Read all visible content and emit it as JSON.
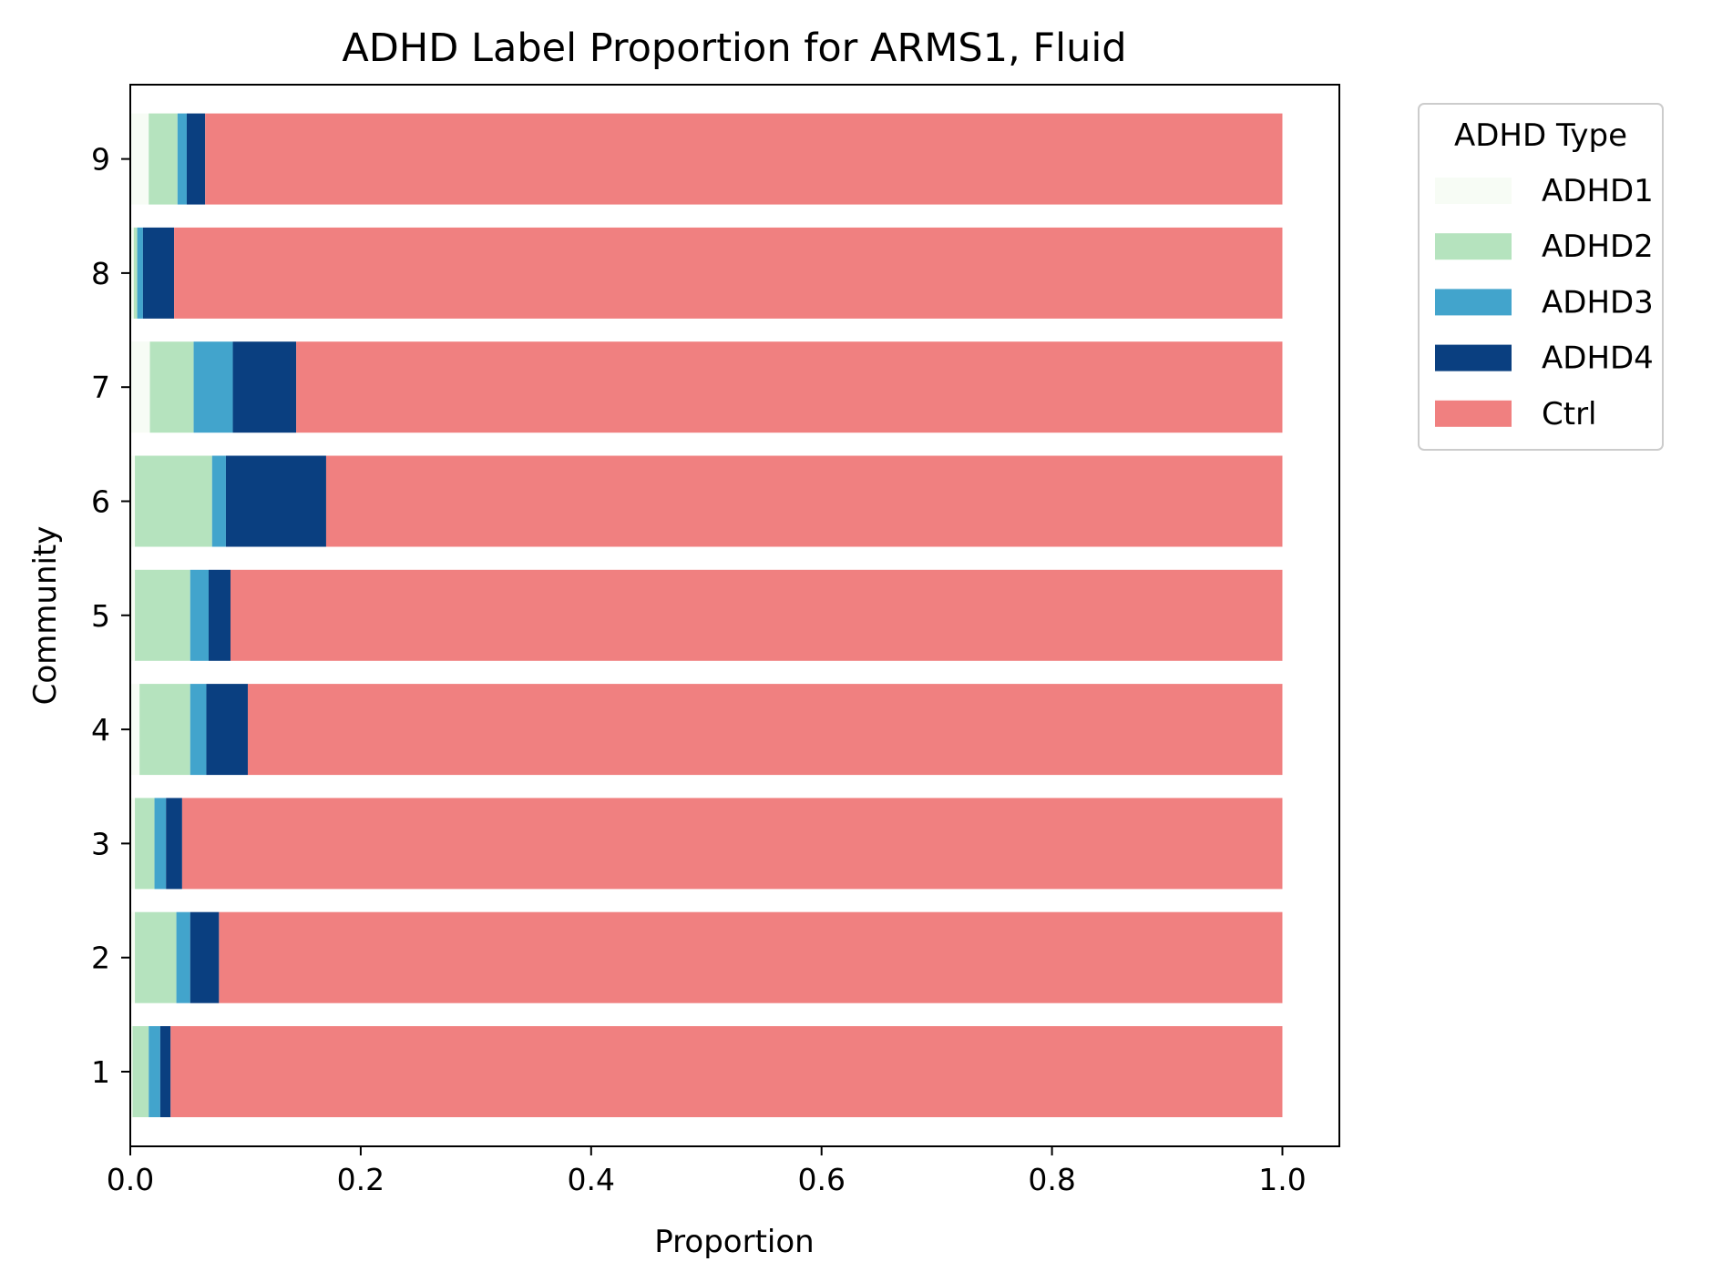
{
  "chart_data": {
    "type": "bar",
    "orientation": "horizontal",
    "stacked": true,
    "title": "ADHD Label Proportion for ARMS1, Fluid",
    "xlabel": "Proportion",
    "ylabel": "Community",
    "xlim": [
      0,
      1.05
    ],
    "xticks": [
      "0.0",
      "0.2",
      "0.4",
      "0.6",
      "0.8",
      "1.0"
    ],
    "categories": [
      "1",
      "2",
      "3",
      "4",
      "5",
      "6",
      "7",
      "8",
      "9"
    ],
    "grid": false,
    "legend": {
      "title": "ADHD Type",
      "placement": "outside-top-right"
    },
    "series": [
      {
        "name": "ADHD1",
        "color": "#f7fcf5",
        "values": [
          0.002,
          0.004,
          0.004,
          0.008,
          0.004,
          0.004,
          0.017,
          0.003,
          0.016
        ]
      },
      {
        "name": "ADHD2",
        "color": "#b5e3be",
        "values": [
          0.014,
          0.036,
          0.017,
          0.044,
          0.048,
          0.067,
          0.038,
          0.003,
          0.025
        ]
      },
      {
        "name": "ADHD3",
        "color": "#42a4cc",
        "values": [
          0.01,
          0.012,
          0.01,
          0.014,
          0.016,
          0.012,
          0.034,
          0.005,
          0.008
        ]
      },
      {
        "name": "ADHD4",
        "color": "#0a3f80",
        "values": [
          0.009,
          0.025,
          0.014,
          0.036,
          0.019,
          0.087,
          0.055,
          0.027,
          0.016
        ]
      },
      {
        "name": "Ctrl",
        "color": "#f08080",
        "values": [
          0.965,
          0.923,
          0.955,
          0.898,
          0.913,
          0.83,
          0.856,
          0.962,
          0.935
        ]
      }
    ]
  }
}
